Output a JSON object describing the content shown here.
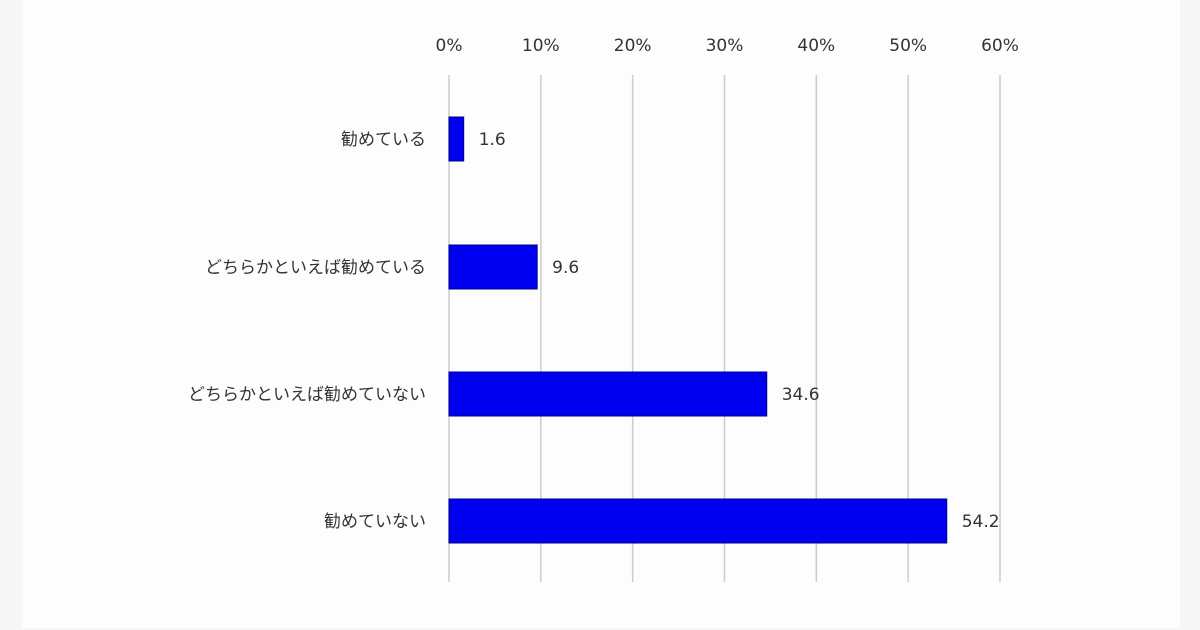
{
  "chart_data": {
    "type": "bar",
    "orientation": "horizontal",
    "categories": [
      "勧めている",
      "どちらかといえば勧めている",
      "どちらかといえば勧めていない",
      "勧めていない"
    ],
    "values": [
      1.6,
      9.6,
      34.6,
      54.2
    ],
    "data_labels": [
      "1.6",
      "9.6",
      "34.6",
      "54.2"
    ],
    "x_ticks": [
      "0%",
      "10%",
      "20%",
      "30%",
      "40%",
      "50%",
      "60%"
    ],
    "xlim": [
      0,
      60
    ],
    "x_axis_position": "top",
    "grid": true,
    "legend": "none",
    "title": "",
    "xlabel": "",
    "ylabel": "",
    "colors": {
      "bar": "#0000f0",
      "grid": "#cccccc",
      "text": "#333333"
    }
  }
}
